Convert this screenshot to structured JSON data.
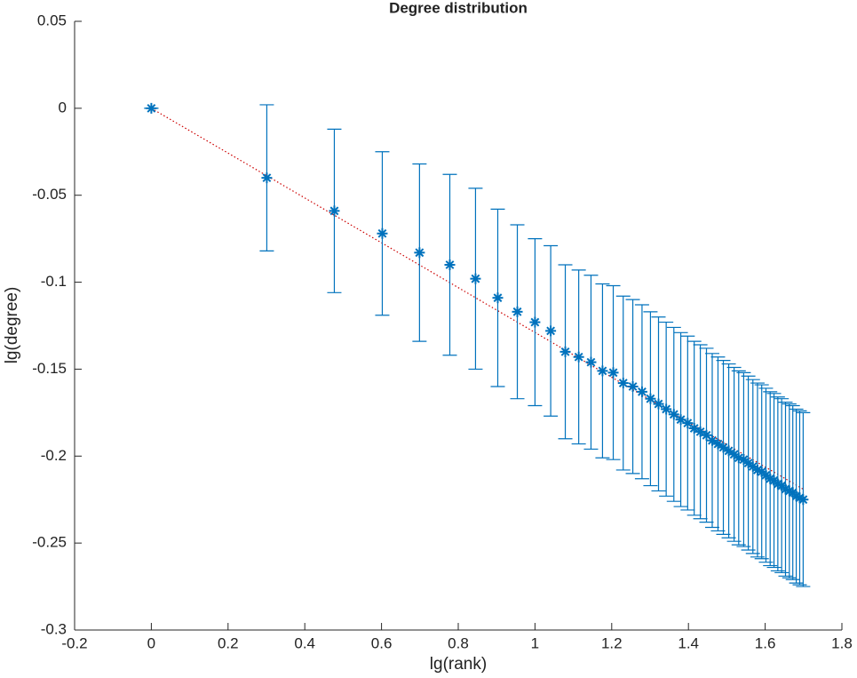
{
  "chart_data": {
    "type": "errorbar",
    "title": "Degree distribution",
    "x_label": "lg(rank)",
    "y_label": "lg(degree)",
    "xlim": [
      -0.2,
      1.8
    ],
    "xticks": [
      -0.2,
      0,
      0.2,
      0.4,
      0.6,
      0.8,
      1,
      1.2,
      1.4,
      1.6,
      1.8
    ],
    "ylim": [
      -0.3,
      0.05
    ],
    "yticks": [
      -0.3,
      -0.25,
      -0.2,
      -0.15,
      -0.1,
      -0.05,
      0,
      0.05
    ],
    "grid": false,
    "series": [
      {
        "color": "#0072bd",
        "x": [
          0,
          0.301,
          0.477,
          0.602,
          0.699,
          0.778,
          0.845,
          0.903,
          0.954,
          1,
          1.041,
          1.079,
          1.114,
          1.146,
          1.176,
          1.204,
          1.23,
          1.255,
          1.279,
          1.301,
          1.322,
          1.342,
          1.362,
          1.38,
          1.398,
          1.415,
          1.431,
          1.447,
          1.462,
          1.477,
          1.491,
          1.505,
          1.519,
          1.531,
          1.544,
          1.556,
          1.568,
          1.58,
          1.591,
          1.602,
          1.613,
          1.623,
          1.633,
          1.643,
          1.653,
          1.663,
          1.672,
          1.681,
          1.69,
          1.699
        ],
        "values": [
          0,
          -0.04,
          -0.059,
          -0.072,
          -0.083,
          -0.09,
          -0.098,
          -0.109,
          -0.117,
          -0.123,
          -0.128,
          -0.14,
          -0.143,
          -0.146,
          -0.151,
          -0.152,
          -0.158,
          -0.16,
          -0.163,
          -0.167,
          -0.17,
          -0.173,
          -0.176,
          -0.179,
          -0.181,
          -0.184,
          -0.186,
          -0.188,
          -0.191,
          -0.193,
          -0.195,
          -0.197,
          -0.199,
          -0.201,
          -0.202,
          -0.204,
          -0.206,
          -0.208,
          -0.209,
          -0.211,
          -0.213,
          -0.214,
          -0.216,
          -0.217,
          -0.219,
          -0.22,
          -0.221,
          -0.223,
          -0.224,
          -0.225
        ],
        "errors": [
          0,
          0.042,
          0.047,
          0.047,
          0.051,
          0.052,
          0.052,
          0.051,
          0.05,
          0.048,
          0.049,
          0.05,
          0.05,
          0.05,
          0.05,
          0.05,
          0.05,
          0.05,
          0.05,
          0.05,
          0.05,
          0.05,
          0.05,
          0.05,
          0.05,
          0.05,
          0.05,
          0.05,
          0.05,
          0.05,
          0.05,
          0.05,
          0.05,
          0.05,
          0.05,
          0.05,
          0.05,
          0.05,
          0.05,
          0.05,
          0.05,
          0.05,
          0.05,
          0.05,
          0.05,
          0.05,
          0.05,
          0.05,
          0.05,
          0.05
        ]
      },
      {
        "color": "#cc0000",
        "style": "dotted",
        "x": [
          0,
          1.699
        ],
        "values": [
          0,
          -0.219
        ]
      }
    ]
  }
}
